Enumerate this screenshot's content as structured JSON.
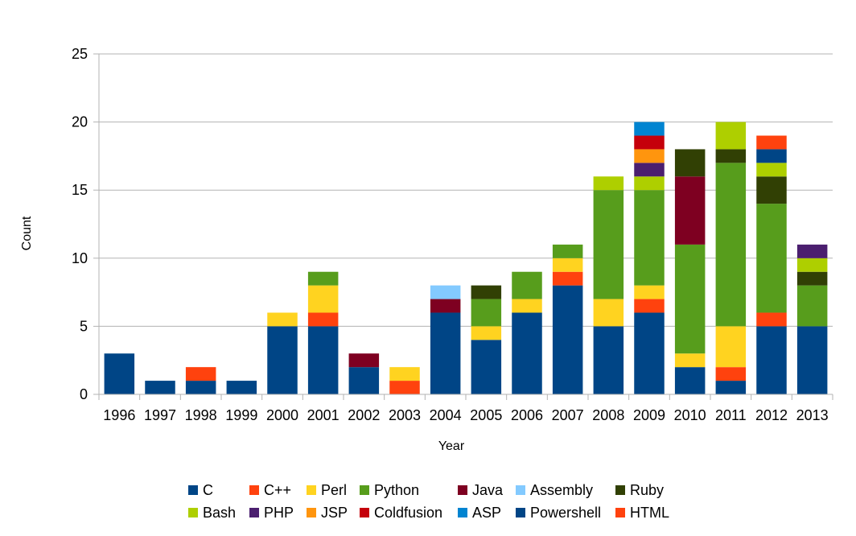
{
  "chart_data": {
    "type": "bar",
    "stacked": true,
    "title": "",
    "xlabel": "Year",
    "ylabel": "Count",
    "ylim": [
      0,
      25
    ],
    "yticks": [
      0,
      5,
      10,
      15,
      20,
      25
    ],
    "grid": true,
    "legend_position": "bottom",
    "categories": [
      "1996",
      "1997",
      "1998",
      "1999",
      "2000",
      "2001",
      "2002",
      "2003",
      "2004",
      "2005",
      "2006",
      "2007",
      "2008",
      "2009",
      "2010",
      "2011",
      "2012",
      "2013"
    ],
    "series": [
      {
        "name": "C",
        "color": "#004586",
        "values": [
          3,
          1,
          1,
          1,
          5,
          5,
          2,
          0,
          6,
          4,
          6,
          8,
          5,
          6,
          2,
          1,
          5,
          5
        ]
      },
      {
        "name": "C++",
        "color": "#ff420e",
        "values": [
          0,
          0,
          1,
          0,
          0,
          1,
          0,
          1,
          0,
          0,
          0,
          1,
          0,
          1,
          0,
          1,
          1,
          0
        ]
      },
      {
        "name": "Perl",
        "color": "#ffd320",
        "values": [
          0,
          0,
          0,
          0,
          1,
          2,
          0,
          1,
          0,
          1,
          1,
          1,
          2,
          1,
          1,
          3,
          0,
          0
        ]
      },
      {
        "name": "Python",
        "color": "#579d1c",
        "values": [
          0,
          0,
          0,
          0,
          0,
          1,
          0,
          0,
          0,
          2,
          2,
          1,
          8,
          7,
          8,
          12,
          8,
          3
        ]
      },
      {
        "name": "Java",
        "color": "#7e0021",
        "values": [
          0,
          0,
          0,
          0,
          0,
          0,
          1,
          0,
          1,
          0,
          0,
          0,
          0,
          0,
          5,
          0,
          0,
          0
        ]
      },
      {
        "name": "Assembly",
        "color": "#83caff",
        "values": [
          0,
          0,
          0,
          0,
          0,
          0,
          0,
          0,
          1,
          0,
          0,
          0,
          0,
          0,
          0,
          0,
          0,
          0
        ]
      },
      {
        "name": "Ruby",
        "color": "#314004",
        "values": [
          0,
          0,
          0,
          0,
          0,
          0,
          0,
          0,
          0,
          1,
          0,
          0,
          0,
          0,
          2,
          1,
          2,
          1
        ]
      },
      {
        "name": "Bash",
        "color": "#aecf00",
        "values": [
          0,
          0,
          0,
          0,
          0,
          0,
          0,
          0,
          0,
          0,
          0,
          0,
          1,
          1,
          0,
          2,
          1,
          1
        ]
      },
      {
        "name": "PHP",
        "color": "#4b1f6f",
        "values": [
          0,
          0,
          0,
          0,
          0,
          0,
          0,
          0,
          0,
          0,
          0,
          0,
          0,
          1,
          0,
          0,
          0,
          1
        ]
      },
      {
        "name": "JSP",
        "color": "#ff950e",
        "values": [
          0,
          0,
          0,
          0,
          0,
          0,
          0,
          0,
          0,
          0,
          0,
          0,
          0,
          1,
          0,
          0,
          0,
          0
        ]
      },
      {
        "name": "Coldfusion",
        "color": "#c5000b",
        "values": [
          0,
          0,
          0,
          0,
          0,
          0,
          0,
          0,
          0,
          0,
          0,
          0,
          0,
          1,
          0,
          0,
          0,
          0
        ]
      },
      {
        "name": "ASP",
        "color": "#0084d1",
        "values": [
          0,
          0,
          0,
          0,
          0,
          0,
          0,
          0,
          0,
          0,
          0,
          0,
          0,
          1,
          0,
          0,
          0,
          0
        ]
      },
      {
        "name": "Powershell",
        "color": "#004586",
        "values": [
          0,
          0,
          0,
          0,
          0,
          0,
          0,
          0,
          0,
          0,
          0,
          0,
          0,
          0,
          0,
          0,
          1,
          0
        ]
      },
      {
        "name": "HTML",
        "color": "#ff420e",
        "values": [
          0,
          0,
          0,
          0,
          0,
          0,
          0,
          0,
          0,
          0,
          0,
          0,
          0,
          0,
          0,
          0,
          1,
          0
        ]
      }
    ]
  }
}
